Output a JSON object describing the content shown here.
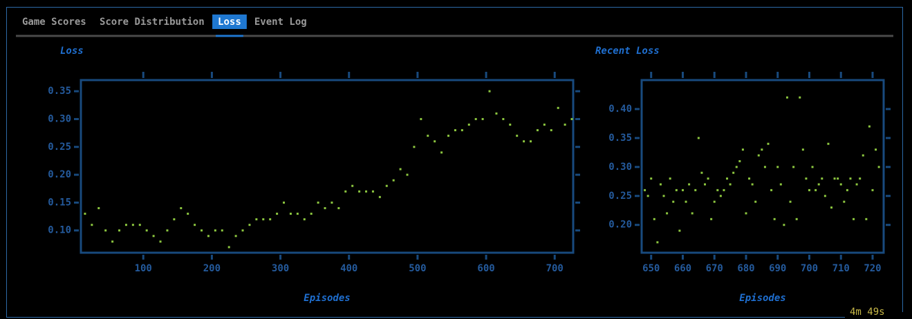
{
  "tabs": [
    "Game Scores",
    "Score Distribution",
    "Loss",
    "Event Log"
  ],
  "active_tab": 2,
  "timer": "4m 49s",
  "chart_data": [
    {
      "type": "scatter",
      "title": "Loss",
      "x_label": "Episodes",
      "color": "#8cc63f",
      "x": [
        15,
        25,
        35,
        45,
        55,
        65,
        75,
        85,
        95,
        105,
        115,
        125,
        135,
        145,
        155,
        165,
        175,
        185,
        195,
        205,
        215,
        225,
        235,
        245,
        255,
        265,
        275,
        285,
        295,
        305,
        315,
        325,
        335,
        345,
        355,
        365,
        375,
        385,
        395,
        405,
        415,
        425,
        435,
        445,
        455,
        465,
        475,
        485,
        495,
        505,
        515,
        525,
        535,
        545,
        555,
        565,
        575,
        585,
        595,
        605,
        615,
        625,
        635,
        645,
        655,
        665,
        675,
        685,
        695,
        705,
        715,
        725
      ],
      "values": [
        0.13,
        0.11,
        0.14,
        0.1,
        0.08,
        0.1,
        0.11,
        0.11,
        0.11,
        0.1,
        0.09,
        0.08,
        0.1,
        0.12,
        0.14,
        0.13,
        0.11,
        0.1,
        0.09,
        0.1,
        0.1,
        0.07,
        0.09,
        0.1,
        0.11,
        0.12,
        0.12,
        0.12,
        0.13,
        0.15,
        0.13,
        0.13,
        0.12,
        0.13,
        0.15,
        0.14,
        0.15,
        0.14,
        0.17,
        0.18,
        0.17,
        0.17,
        0.17,
        0.16,
        0.18,
        0.19,
        0.21,
        0.2,
        0.25,
        0.3,
        0.27,
        0.26,
        0.24,
        0.27,
        0.28,
        0.28,
        0.29,
        0.3,
        0.3,
        0.35,
        0.31,
        0.3,
        0.29,
        0.27,
        0.26,
        0.26,
        0.28,
        0.29,
        0.28,
        0.32,
        0.29,
        0.3
      ],
      "xlim": [
        9,
        727
      ],
      "xticks": [
        100,
        200,
        300,
        400,
        500,
        600,
        700
      ],
      "ylim": [
        0.06,
        0.37
      ],
      "yticks": [
        {
          "value": 0.1,
          "label": "0.10"
        },
        0.15,
        {
          "value": 0.2,
          "label": "0.20"
        },
        0.25,
        {
          "value": 0.3,
          "label": "0.30"
        },
        0.35
      ]
    },
    {
      "type": "scatter",
      "title": "Recent Loss",
      "x_label": "Episodes",
      "color": "#8cc63f",
      "x": [
        648,
        649,
        650,
        651,
        652,
        653,
        654,
        655,
        656,
        657,
        658,
        659,
        660,
        661,
        662,
        663,
        664,
        665,
        666,
        667,
        668,
        669,
        670,
        671,
        672,
        673,
        674,
        675,
        676,
        677,
        678,
        679,
        680,
        681,
        682,
        683,
        684,
        685,
        686,
        687,
        688,
        689,
        690,
        691,
        692,
        693,
        694,
        695,
        696,
        697,
        698,
        699,
        700,
        701,
        702,
        703,
        704,
        705,
        706,
        707,
        708,
        709,
        710,
        711,
        712,
        713,
        714,
        715,
        716,
        717,
        718,
        719,
        720,
        721,
        722
      ],
      "values": [
        0.26,
        0.25,
        0.28,
        0.21,
        0.17,
        0.27,
        0.25,
        0.22,
        0.28,
        0.24,
        0.26,
        0.19,
        0.26,
        0.24,
        0.27,
        0.22,
        0.26,
        0.35,
        0.29,
        0.27,
        0.28,
        0.21,
        0.24,
        0.26,
        0.25,
        0.26,
        0.28,
        0.27,
        0.29,
        0.3,
        0.31,
        0.33,
        0.22,
        0.28,
        0.27,
        0.24,
        0.32,
        0.33,
        0.3,
        0.34,
        0.26,
        0.21,
        0.3,
        0.27,
        0.2,
        0.42,
        0.24,
        0.3,
        0.21,
        0.42,
        0.33,
        0.28,
        0.26,
        0.3,
        0.26,
        0.27,
        0.28,
        0.25,
        0.34,
        0.23,
        0.28,
        0.28,
        0.27,
        0.24,
        0.26,
        0.28,
        0.21,
        0.27,
        0.28,
        0.32,
        0.21,
        0.37,
        0.26,
        0.33,
        0.3
      ],
      "xlim": [
        647,
        723.5
      ],
      "xticks": [
        650,
        660,
        670,
        680,
        690,
        700,
        710,
        720
      ],
      "ylim": [
        0.152,
        0.45
      ],
      "yticks": [
        {
          "value": 0.2,
          "label": "0.20"
        },
        0.25,
        {
          "value": 0.3,
          "label": "0.30"
        },
        0.35,
        {
          "value": 0.4,
          "label": "0.40"
        }
      ]
    }
  ]
}
